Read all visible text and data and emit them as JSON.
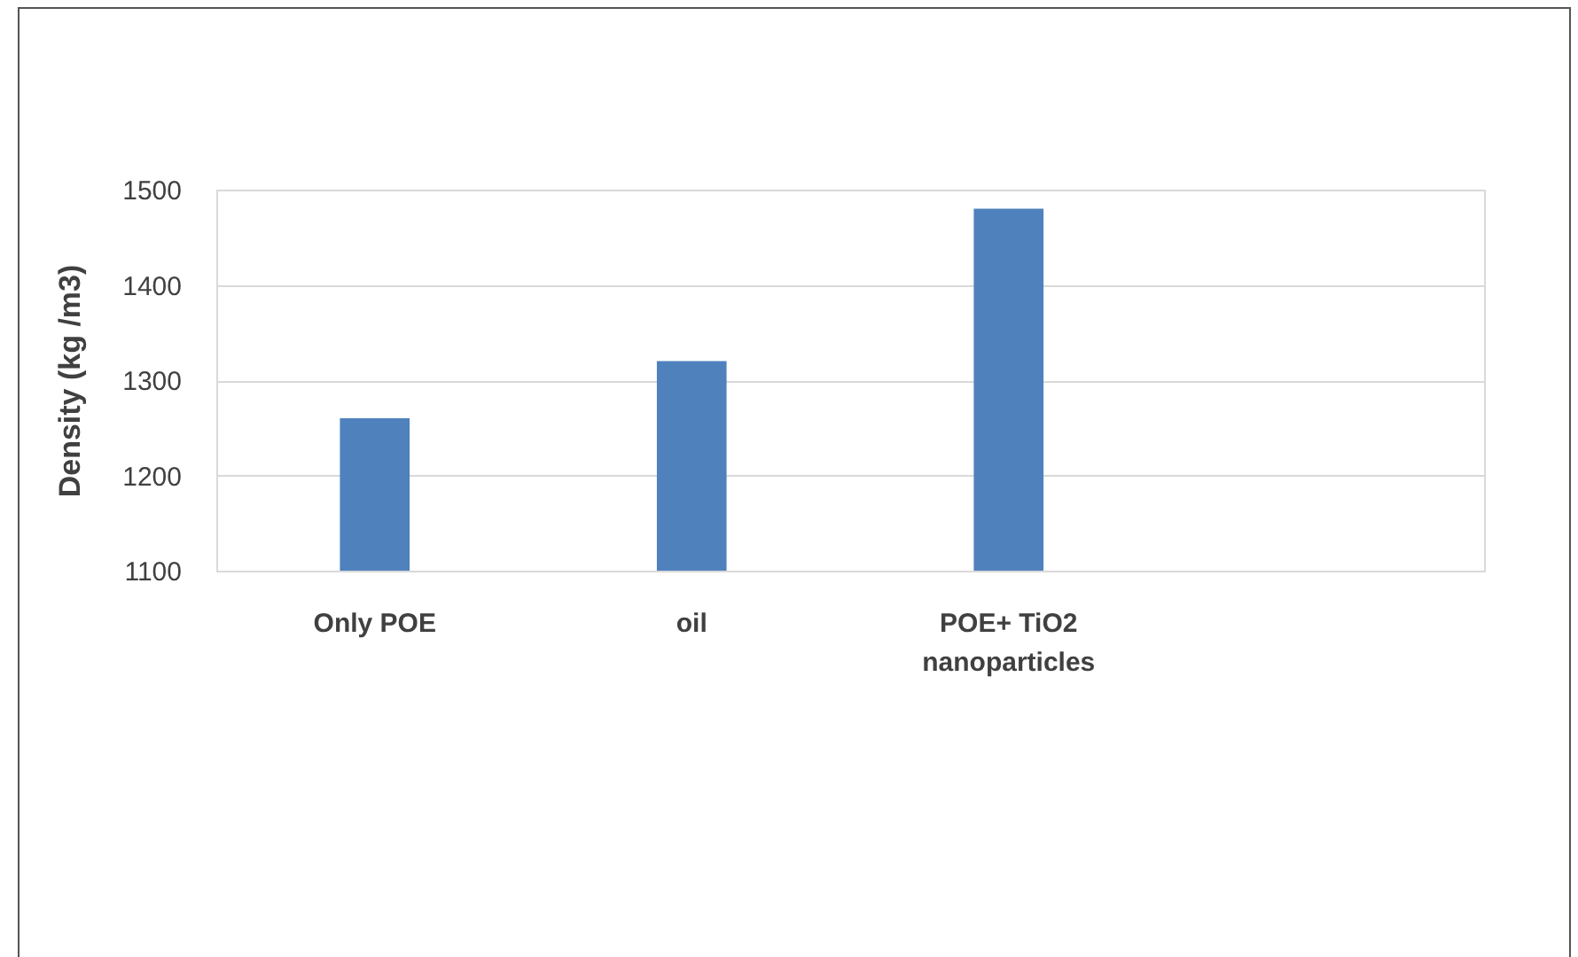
{
  "chart_data": {
    "type": "bar",
    "ylabel": "Density (kg /m3)",
    "categories": [
      "Only POE",
      "oil",
      "POE+ TiO2 nanoparticles",
      null
    ],
    "values": [
      1260,
      1320,
      1480,
      null
    ],
    "color": "#4f81bd",
    "ylim": [
      1100,
      1500
    ],
    "yticks": [
      1100,
      1200,
      1300,
      1400,
      1500
    ],
    "grid": "y"
  }
}
